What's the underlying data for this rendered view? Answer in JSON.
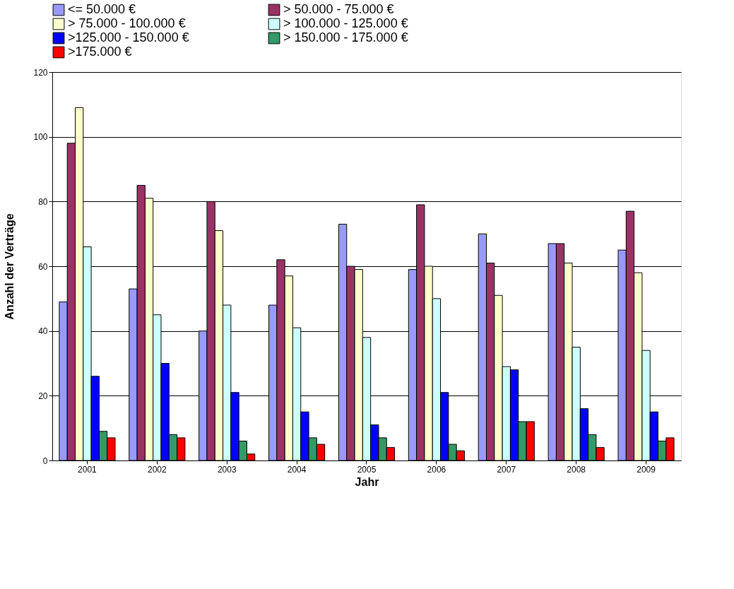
{
  "chart_data": {
    "type": "bar",
    "xlabel": "Jahr",
    "ylabel": "Anzahl der Verträge",
    "categories": [
      "2001",
      "2002",
      "2003",
      "2004",
      "2005",
      "2006",
      "2007",
      "2008",
      "2009"
    ],
    "series": [
      {
        "name": "<= 50.000 €",
        "color": "#9999ff",
        "values": [
          49,
          53,
          40,
          48,
          73,
          59,
          70,
          67,
          65
        ]
      },
      {
        "name": "> 50.000 - 75.000 €",
        "color": "#993366",
        "values": [
          98,
          85,
          80,
          62,
          60,
          79,
          61,
          67,
          77
        ]
      },
      {
        "name": "> 75.000 - 100.000 €",
        "color": "#ffffcc",
        "values": [
          109,
          81,
          71,
          57,
          59,
          60,
          51,
          61,
          58
        ]
      },
      {
        "name": "> 100.000 - 125.000 €",
        "color": "#ccffff",
        "values": [
          66,
          45,
          48,
          41,
          38,
          50,
          29,
          35,
          34
        ]
      },
      {
        "name": ">125.000 - 150.000 €",
        "color": "#0000ff",
        "values": [
          26,
          30,
          21,
          15,
          11,
          21,
          28,
          16,
          15
        ]
      },
      {
        "name": "> 150.000 - 175.000 €",
        "color": "#339966",
        "values": [
          9,
          8,
          6,
          7,
          7,
          5,
          12,
          8,
          6
        ]
      },
      {
        "name": ">175.000 €",
        "color": "#ff0000",
        "values": [
          7,
          7,
          2,
          5,
          4,
          3,
          12,
          4,
          7
        ]
      }
    ],
    "ylim": [
      0,
      120
    ],
    "yticks": [
      0,
      20,
      40,
      60,
      80,
      100,
      120
    ],
    "grid": "y",
    "legend": "top"
  }
}
